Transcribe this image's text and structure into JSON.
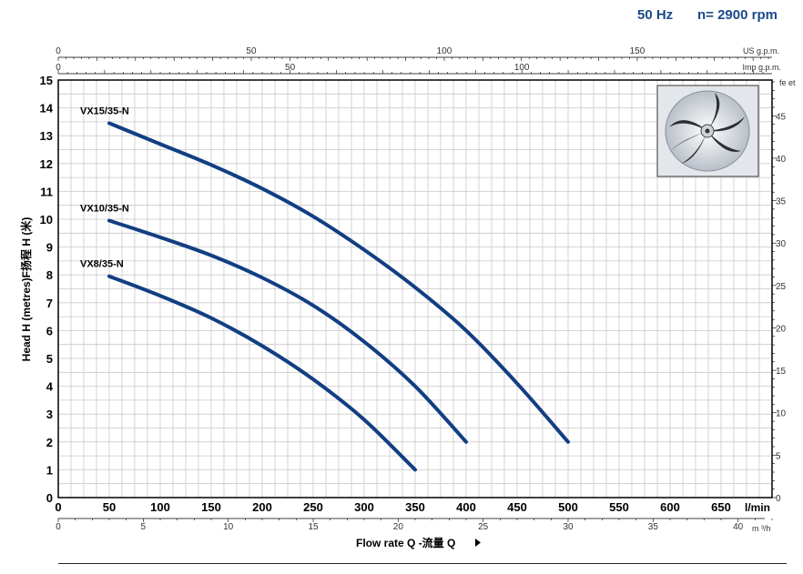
{
  "header": {
    "frequency": "50 Hz",
    "speed": "n= 2900 rpm"
  },
  "colors": {
    "curve": "#123e82",
    "header": "#1a4a8a",
    "grid": "#c8c8c8",
    "axis": "#000000"
  },
  "image": {
    "icon": "impeller-icon"
  },
  "chart_data": {
    "type": "line",
    "title": "",
    "xlabel": "Flow rate  Q -流量 Q",
    "ylabel": "Head H  (metres)F扬程  H (米)",
    "x_unit": "l/min",
    "xlim": [
      0,
      700
    ],
    "ylim": [
      0,
      15
    ],
    "x_ticks": [
      "0",
      "50",
      "100",
      "150",
      "200",
      "250",
      "300",
      "350",
      "400",
      "450",
      "500",
      "550",
      "600",
      "650"
    ],
    "y_ticks": [
      "0",
      "1",
      "2",
      "3",
      "4",
      "5",
      "6",
      "7",
      "8",
      "9",
      "10",
      "11",
      "12",
      "13",
      "14",
      "15"
    ],
    "secondary_axes": {
      "us_gpm": {
        "label": "US g.p.m.",
        "ticks": [
          "0",
          "50",
          "100",
          "150"
        ]
      },
      "imp_gpm": {
        "label": "Imp g.p.m.",
        "ticks": [
          "0",
          "50",
          "100"
        ]
      },
      "feet": {
        "label": "fe et",
        "ticks": [
          "0",
          "5",
          "10",
          "15",
          "20",
          "25",
          "30",
          "35",
          "40",
          "45"
        ]
      },
      "m3h": {
        "label": "m ³/h",
        "ticks": [
          "0",
          "5",
          "10",
          "15",
          "20",
          "25",
          "30",
          "35",
          "40"
        ]
      }
    },
    "grid": true,
    "series": [
      {
        "name": "VX15/35-N",
        "x": [
          50,
          100,
          150,
          200,
          250,
          300,
          350,
          400,
          450,
          500
        ],
        "y": [
          13.45,
          12.7,
          11.95,
          11.1,
          10.1,
          8.9,
          7.55,
          6.0,
          4.1,
          2.0
        ]
      },
      {
        "name": "VX10/35-N",
        "x": [
          50,
          100,
          150,
          200,
          250,
          300,
          350,
          400
        ],
        "y": [
          9.95,
          9.35,
          8.7,
          7.9,
          6.9,
          5.6,
          4.0,
          2.0
        ]
      },
      {
        "name": "VX8/35-N",
        "x": [
          50,
          100,
          150,
          200,
          250,
          300,
          350
        ],
        "y": [
          7.95,
          7.25,
          6.45,
          5.45,
          4.25,
          2.8,
          1.0
        ]
      }
    ]
  }
}
